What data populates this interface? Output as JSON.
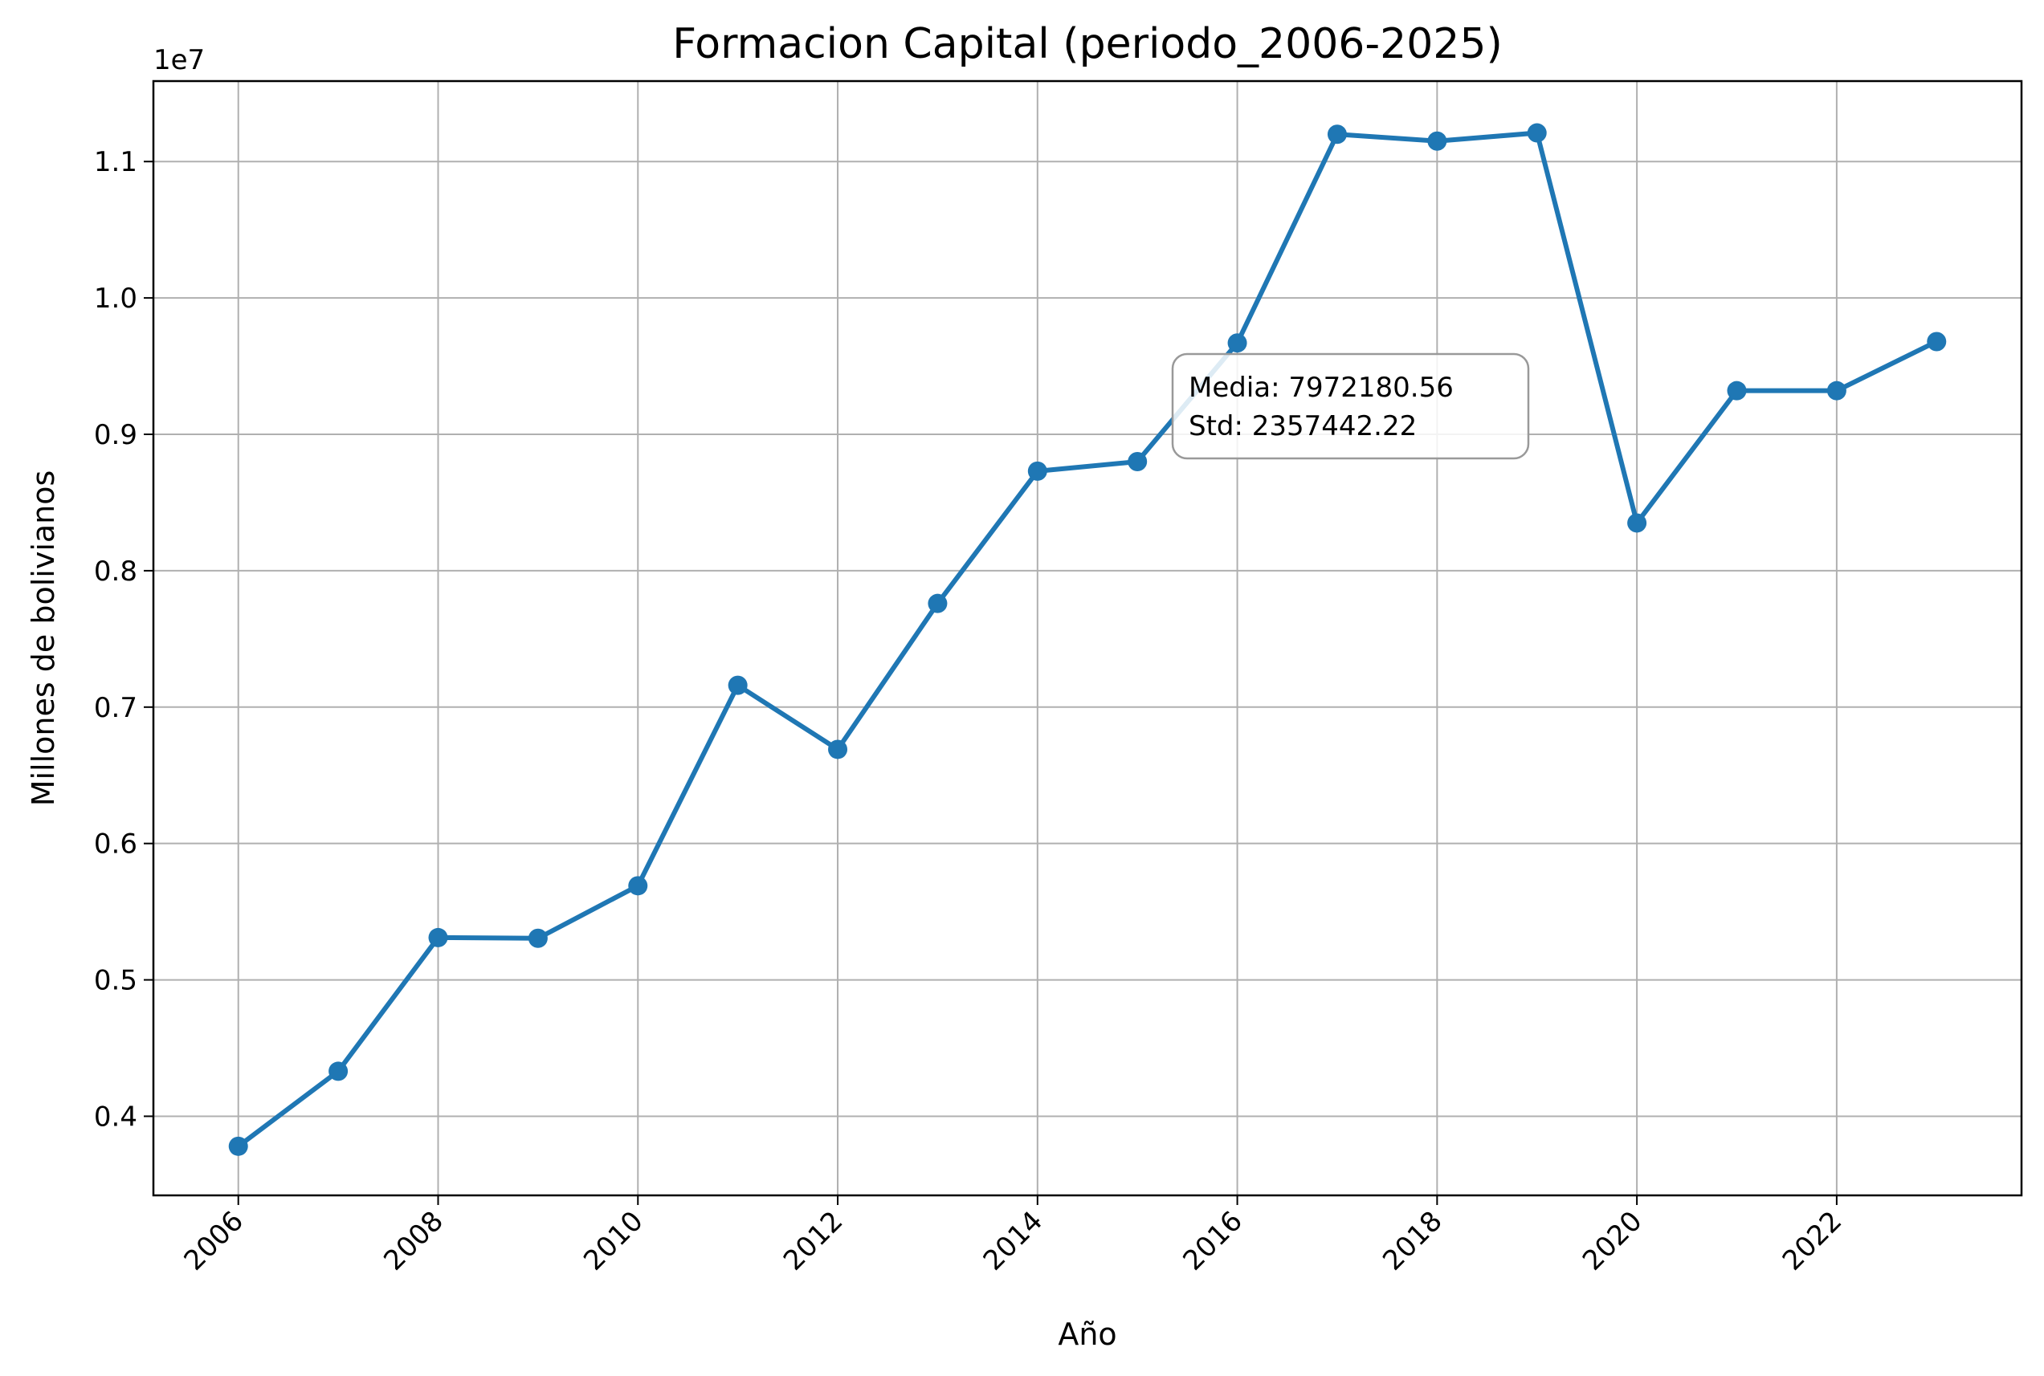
{
  "chart_data": {
    "type": "line",
    "title": "Formacion Capital (periodo_2006-2025)",
    "xlabel": "Año",
    "ylabel": "Millones de bolivianos",
    "y_offset_label": "1e7",
    "xlim": [
      2005.15,
      2023.85
    ],
    "ylim": [
      3420000.0,
      11590000.0
    ],
    "x_ticks": [
      2006,
      2008,
      2010,
      2012,
      2014,
      2016,
      2018,
      2020,
      2022
    ],
    "x_tick_labels": [
      "2006",
      "2008",
      "2010",
      "2012",
      "2014",
      "2016",
      "2018",
      "2020",
      "2022"
    ],
    "y_ticks": [
      4000000,
      5000000,
      6000000,
      7000000,
      8000000,
      9000000,
      10000000,
      11000000
    ],
    "y_tick_labels": [
      "0.4",
      "0.5",
      "0.6",
      "0.7",
      "0.8",
      "0.9",
      "1.0",
      "1.1"
    ],
    "grid": true,
    "series": [
      {
        "color": "#1f77b4",
        "x": [
          2006,
          2007,
          2008,
          2009,
          2010,
          2011,
          2012,
          2013,
          2014,
          2015,
          2016,
          2017,
          2018,
          2019,
          2020,
          2021,
          2022,
          2023
        ],
        "y": [
          3780000,
          4330000,
          5310000,
          5305000,
          5690000,
          7160000,
          6690000,
          7760000,
          8730000,
          8800000,
          9670000,
          11200000,
          11150000,
          11210000,
          8350000,
          9320000,
          9320000,
          9680000
        ]
      }
    ],
    "annotation": {
      "lines": [
        "Media: 7972180.56",
        "Std: 2357442.22"
      ]
    }
  }
}
